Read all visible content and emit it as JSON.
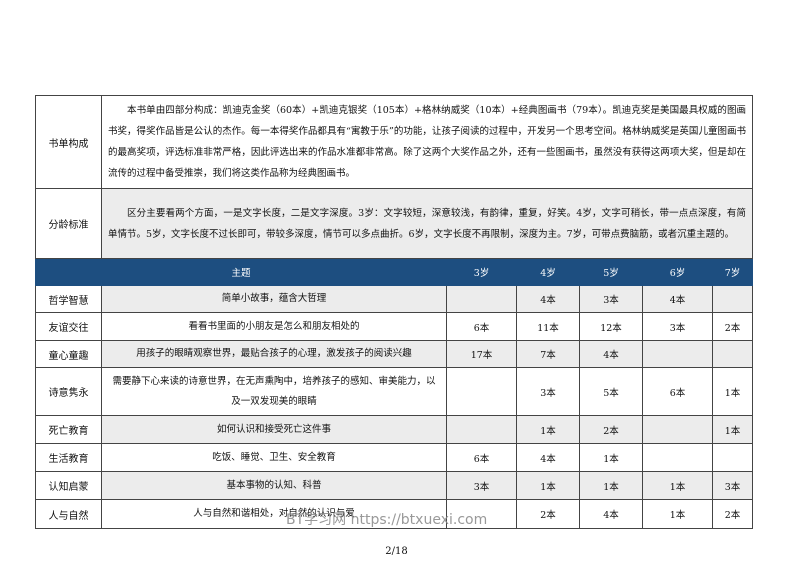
{
  "intro": [
    {
      "label": "书单构成",
      "text": "本书单由四部分构成：凯迪克金奖（60本）+凯迪克银奖（105本）+格林纳威奖（10本）+经典图画书（79本）。凯迪克奖是美国最具权威的图画书奖，得奖作品皆是公认的杰作。每一本得奖作品都具有“寓教于乐”的功能，让孩子阅读的过程中，开发另一个思考空间。格林纳威奖是英国儿童图画书的最高奖项，评选标准非常严格，因此评选出来的作品水准都非常高。除了这两个大奖作品之外，还有一些图画书，虽然没有获得这两项大奖，但是却在流传的过程中备受推崇，我们将这类作品称为经典图画书。"
    },
    {
      "label": "分龄标准",
      "text": "区分主要看两个方面，一是文字长度，二是文字深度。3岁：文字较短，深意较浅，有韵律，重复，好笑。4岁，文字可稍长，带一点点深度，有简单情节。5岁，文字长度不过长即可，带较多深度，情节可以多点曲折。6岁，文字长度不再限制，深度为主。7岁，可带点费脑筋，或者沉重主题的。"
    }
  ],
  "table": {
    "headers": [
      "主题",
      "3岁",
      "4岁",
      "5岁",
      "6岁",
      "7岁"
    ],
    "rows": [
      {
        "name": "哲学智慧",
        "desc": "简单小故事，蕴含大哲理",
        "c": [
          "",
          "4本",
          "3本",
          "4本",
          ""
        ]
      },
      {
        "name": "友谊交往",
        "desc": "看看书里面的小朋友是怎么和朋友相处的",
        "c": [
          "6本",
          "11本",
          "12本",
          "3本",
          "2本"
        ]
      },
      {
        "name": "童心童趣",
        "desc": "用孩子的眼睛观察世界，最贴合孩子的心理，激发孩子的阅读兴趣",
        "c": [
          "17本",
          "7本",
          "4本",
          "",
          ""
        ]
      },
      {
        "name": "诗意隽永",
        "desc": "需要静下心来读的诗意世界，在无声熏陶中，培养孩子的感知、审美能力，以及一双发现美的眼睛",
        "c": [
          "",
          "3本",
          "5本",
          "6本",
          "1本"
        ]
      },
      {
        "name": "死亡教育",
        "desc": "如何认识和接受死亡这件事",
        "c": [
          "",
          "1本",
          "2本",
          "",
          "1本"
        ]
      },
      {
        "name": "生活教育",
        "desc": "吃饭、睡觉、卫生、安全教育",
        "c": [
          "6本",
          "4本",
          "1本",
          "",
          ""
        ]
      },
      {
        "name": "认知启蒙",
        "desc": "基本事物的认知、科普",
        "c": [
          "3本",
          "1本",
          "1本",
          "1本",
          "3本"
        ]
      },
      {
        "name": "人与自然",
        "desc": "人与自然和谐相处，对自然的认识与爱",
        "c": [
          "",
          "2本",
          "4本",
          "1本",
          "2本"
        ]
      }
    ]
  },
  "watermark": "BT学习网 https://btxuexi.com",
  "page_number": "2/18",
  "colors": {
    "header_bg": "#1d4e80",
    "row_shade": "#ececec"
  }
}
